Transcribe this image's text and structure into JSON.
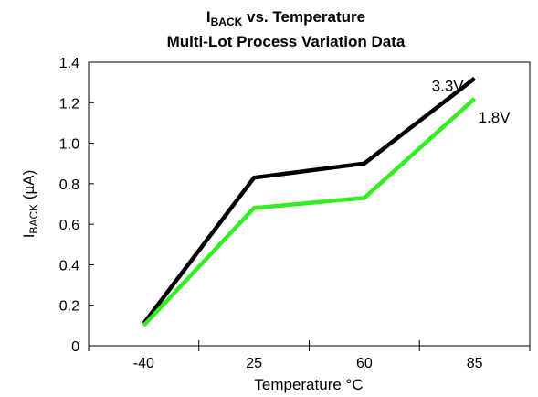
{
  "chart_data": {
    "type": "line",
    "title_main": "I",
    "title_sub": "BACK",
    "title_rest": " vs. Temperature",
    "subtitle": "Multi-Lot Process Variation Data",
    "xlabel": "Temperature °C",
    "ylabel_main": "I",
    "ylabel_sub": "BACK",
    "ylabel_rest": " (µA)",
    "categories": [
      "-40",
      "25",
      "60",
      "85"
    ],
    "ylim": [
      0,
      1.4
    ],
    "yticks": [
      "0",
      "0.2",
      "0.4",
      "0.6",
      "0.8",
      "1.0",
      "1.2",
      "1.4"
    ],
    "grid": false,
    "series": [
      {
        "name": "3.3V",
        "values": [
          0.11,
          0.83,
          0.9,
          1.32
        ],
        "color": "#000000"
      },
      {
        "name": "1.8V",
        "values": [
          0.1,
          0.68,
          0.73,
          1.22
        ],
        "color": "#33ee22"
      }
    ]
  }
}
